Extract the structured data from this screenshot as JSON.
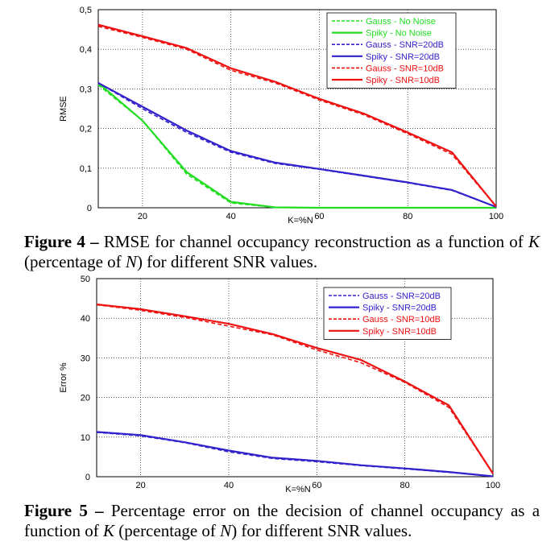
{
  "chart_data": [
    {
      "type": "line",
      "title": "",
      "xlabel": "K=%N",
      "ylabel": "RMSE",
      "xlim": [
        10,
        100
      ],
      "ylim": [
        0,
        0.5
      ],
      "xticks": [
        "20",
        "40",
        "60",
        "80",
        "100"
      ],
      "xtick_values": [
        20,
        40,
        60,
        80,
        100
      ],
      "yticks": [
        "0",
        "0,1",
        "0,2",
        "0,3",
        "0,4",
        "0,5"
      ],
      "ytick_values": [
        0,
        0.1,
        0.2,
        0.3,
        0.4,
        0.5
      ],
      "grid": true,
      "legend_position": "top-right",
      "series": [
        {
          "name": "Gauss - No Noise",
          "color": "#22dd22",
          "dash": true,
          "x": [
            10,
            20,
            30,
            40,
            50,
            60,
            70,
            80,
            90,
            100
          ],
          "values": [
            0.31,
            0.22,
            0.085,
            0.012,
            0.001,
            0,
            0,
            0,
            0,
            0
          ]
        },
        {
          "name": "Spiky - No Noise",
          "color": "#22dd22",
          "dash": false,
          "x": [
            10,
            20,
            30,
            40,
            50,
            60,
            70,
            80,
            90,
            100
          ],
          "values": [
            0.315,
            0.22,
            0.09,
            0.015,
            0.001,
            0,
            0,
            0,
            0,
            0
          ]
        },
        {
          "name": "Gauss - SNR=20dB",
          "color": "#3322cc",
          "dash": true,
          "x": [
            10,
            20,
            30,
            40,
            50,
            60,
            70,
            80,
            90,
            100
          ],
          "values": [
            0.315,
            0.25,
            0.19,
            0.14,
            0.112,
            0.097,
            0.08,
            0.063,
            0.044,
            0.002
          ]
        },
        {
          "name": "Spiky - SNR=20dB",
          "color": "#3322cc",
          "dash": false,
          "x": [
            10,
            20,
            30,
            40,
            50,
            60,
            70,
            80,
            90,
            100
          ],
          "values": [
            0.315,
            0.255,
            0.195,
            0.143,
            0.114,
            0.098,
            0.081,
            0.064,
            0.045,
            0.002
          ]
        },
        {
          "name": "Gauss - SNR=10dB",
          "color": "#ee1111",
          "dash": true,
          "x": [
            10,
            20,
            30,
            40,
            50,
            60,
            70,
            80,
            90,
            100
          ],
          "values": [
            0.458,
            0.43,
            0.4,
            0.347,
            0.315,
            0.272,
            0.235,
            0.187,
            0.135,
            0.003
          ]
        },
        {
          "name": "Spiky - SNR=10dB",
          "color": "#ee1111",
          "dash": false,
          "x": [
            10,
            20,
            30,
            40,
            50,
            60,
            70,
            80,
            90,
            100
          ],
          "values": [
            0.462,
            0.433,
            0.403,
            0.352,
            0.318,
            0.275,
            0.238,
            0.19,
            0.14,
            0.003
          ]
        }
      ]
    },
    {
      "type": "line",
      "title": "",
      "xlabel": "K=%N",
      "ylabel": "Error %",
      "xlim": [
        10,
        100
      ],
      "ylim": [
        0,
        50
      ],
      "xticks": [
        "20",
        "40",
        "60",
        "80",
        "100"
      ],
      "xtick_values": [
        20,
        40,
        60,
        80,
        100
      ],
      "yticks": [
        "0",
        "10",
        "20",
        "30",
        "40",
        "50"
      ],
      "ytick_values": [
        0,
        10,
        20,
        30,
        40,
        50
      ],
      "grid": true,
      "legend_position": "top-right",
      "series": [
        {
          "name": "Gauss - SNR=20dB",
          "color": "#3322cc",
          "dash": true,
          "x": [
            10,
            20,
            30,
            40,
            50,
            60,
            70,
            80,
            90,
            100
          ],
          "values": [
            11.2,
            10.3,
            8.6,
            6.3,
            4.6,
            3.8,
            2.8,
            2.0,
            1.1,
            0.1
          ]
        },
        {
          "name": "Spiky - SNR=20dB",
          "color": "#3322cc",
          "dash": false,
          "x": [
            10,
            20,
            30,
            40,
            50,
            60,
            70,
            80,
            90,
            100
          ],
          "values": [
            11.3,
            10.5,
            8.7,
            6.6,
            4.8,
            4.0,
            2.9,
            2.1,
            1.2,
            0.1
          ]
        },
        {
          "name": "Gauss - SNR=10dB",
          "color": "#ee1111",
          "dash": true,
          "x": [
            10,
            20,
            30,
            40,
            50,
            60,
            70,
            80,
            90,
            100
          ],
          "values": [
            43.4,
            42.0,
            40.2,
            38.0,
            35.8,
            32.0,
            28.8,
            23.8,
            17.5,
            0.8
          ]
        },
        {
          "name": "Spiky - SNR=10dB",
          "color": "#ee1111",
          "dash": false,
          "x": [
            10,
            20,
            30,
            40,
            50,
            60,
            70,
            80,
            90,
            100
          ],
          "values": [
            43.5,
            42.3,
            40.5,
            38.6,
            36.0,
            32.5,
            29.5,
            24.0,
            18.0,
            0.8
          ]
        }
      ]
    }
  ],
  "captions": {
    "fig4": {
      "label": "Figure 4",
      "dash": "–",
      "t1": "RMSE for channel occupancy reconstruction as a function of",
      "k": "K",
      "t2": "(percentage of",
      "n": "N",
      "t3": ") for different SNR values."
    },
    "fig5": {
      "label": "Figure 5",
      "dash": "–",
      "t1": "Percentage error on the decision of channel occupancy as a function of",
      "k": "K",
      "t2": "(percentage of",
      "n": "N",
      "t3": ") for different SNR values."
    }
  }
}
